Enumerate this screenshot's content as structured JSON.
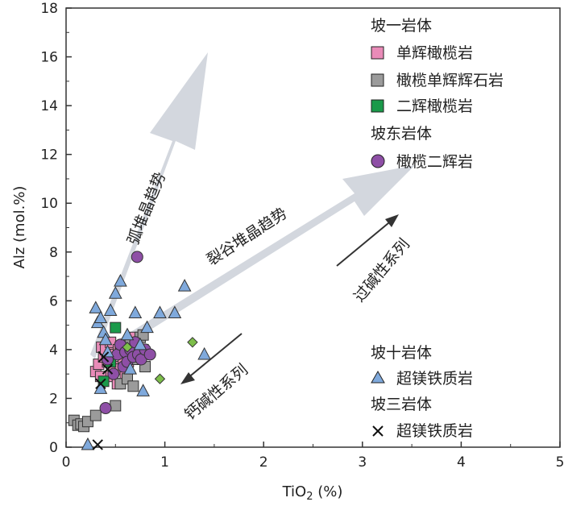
{
  "chart_data": {
    "type": "scatter",
    "xlabel": "TiO",
    "xlabel_sub": "2",
    "xlabel_unit": " (%)",
    "ylabel": "Alz (mol.%)",
    "xlim": [
      0,
      5
    ],
    "ylim": [
      0,
      18
    ],
    "xticks": [
      0,
      1,
      2,
      3,
      4,
      5
    ],
    "yticks": [
      0,
      2,
      4,
      6,
      8,
      10,
      12,
      14,
      16,
      18
    ],
    "legend": {
      "groups": [
        {
          "title": "坡一岩体",
          "entries": [
            {
              "name": "单辉橄榄岩",
              "marker": "square",
              "color": "#E98BB8"
            },
            {
              "name": "橄榄单辉辉石岩",
              "marker": "square",
              "color": "#9B9B9B"
            },
            {
              "name": "二辉橄榄岩",
              "marker": "square",
              "color": "#1A9A4A"
            }
          ]
        },
        {
          "title": "坡东岩体",
          "entries": [
            {
              "name": "橄榄二辉岩",
              "marker": "circle",
              "color": "#8E4FA6"
            }
          ]
        },
        {
          "title": "坡十岩体",
          "entries": [
            {
              "name": "超镁铁质岩",
              "marker": "triangle",
              "color": "#7FA9DC"
            }
          ]
        },
        {
          "title": "坡三岩体",
          "entries": [
            {
              "name": "超镁铁质岩",
              "marker": "cross",
              "color": "#111111"
            }
          ]
        }
      ]
    },
    "annotations": {
      "arc_trend": "弧堆晶趋势",
      "rift_trend": "裂谷堆晶趋势",
      "peralkaline": "过碱性系列",
      "calc_alkaline": "钙碱性系列"
    },
    "series": [
      {
        "name": "单辉橄榄岩",
        "marker": "square",
        "color": "#E98BB8",
        "points": [
          [
            0.3,
            3.1
          ],
          [
            0.33,
            3.4
          ],
          [
            0.36,
            4.1
          ],
          [
            0.38,
            3.7
          ],
          [
            0.4,
            4.0
          ],
          [
            0.42,
            3.5
          ],
          [
            0.44,
            2.9
          ],
          [
            0.46,
            3.9
          ],
          [
            0.48,
            3.3
          ],
          [
            0.5,
            3.8
          ],
          [
            0.52,
            2.6
          ],
          [
            0.55,
            3.2
          ],
          [
            0.58,
            3.6
          ],
          [
            0.6,
            3.0
          ],
          [
            0.63,
            3.5
          ],
          [
            0.66,
            4.3
          ],
          [
            0.7,
            4.5
          ],
          [
            0.35,
            2.9
          ],
          [
            0.45,
            4.3
          ],
          [
            0.53,
            4.0
          ]
        ]
      },
      {
        "name": "橄榄单辉辉石岩",
        "marker": "square",
        "color": "#9B9B9B",
        "points": [
          [
            0.08,
            1.1
          ],
          [
            0.12,
            0.9
          ],
          [
            0.15,
            0.95
          ],
          [
            0.18,
            0.85
          ],
          [
            0.22,
            1.05
          ],
          [
            0.3,
            1.3
          ],
          [
            0.5,
            1.7
          ],
          [
            0.55,
            2.6
          ],
          [
            0.62,
            2.8
          ],
          [
            0.68,
            2.5
          ],
          [
            0.75,
            4.5
          ],
          [
            0.78,
            4.0
          ],
          [
            0.8,
            3.3
          ],
          [
            0.72,
            3.8
          ],
          [
            0.65,
            4.2
          ],
          [
            0.7,
            3.6
          ],
          [
            0.78,
            4.6
          ]
        ]
      },
      {
        "name": "二辉橄榄岩",
        "marker": "square",
        "color": "#1A9A4A",
        "points": [
          [
            0.38,
            2.7
          ],
          [
            0.45,
            3.5
          ],
          [
            0.5,
            4.9
          ],
          [
            0.55,
            4.1
          ],
          [
            0.58,
            3.9
          ]
        ]
      },
      {
        "name": "橄榄二辉岩",
        "marker": "circle",
        "color": "#8E4FA6",
        "points": [
          [
            0.4,
            1.6
          ],
          [
            0.42,
            3.6
          ],
          [
            0.48,
            3.0
          ],
          [
            0.52,
            3.8
          ],
          [
            0.55,
            4.2
          ],
          [
            0.58,
            3.3
          ],
          [
            0.6,
            3.9
          ],
          [
            0.62,
            3.5
          ],
          [
            0.65,
            4.0
          ],
          [
            0.68,
            3.7
          ],
          [
            0.7,
            4.3
          ],
          [
            0.73,
            3.8
          ],
          [
            0.76,
            3.6
          ],
          [
            0.8,
            4.0
          ],
          [
            0.85,
            3.8
          ],
          [
            0.72,
            7.8
          ]
        ]
      },
      {
        "name": "超镁铁质岩 (坡十)",
        "marker": "triangle",
        "color": "#7FA9DC",
        "points": [
          [
            0.22,
            0.1
          ],
          [
            0.3,
            5.7
          ],
          [
            0.32,
            5.1
          ],
          [
            0.35,
            5.3
          ],
          [
            0.38,
            4.7
          ],
          [
            0.4,
            4.4
          ],
          [
            0.42,
            3.9
          ],
          [
            0.45,
            5.6
          ],
          [
            0.5,
            6.3
          ],
          [
            0.55,
            6.8
          ],
          [
            0.62,
            4.6
          ],
          [
            0.65,
            3.2
          ],
          [
            0.7,
            5.5
          ],
          [
            0.75,
            4.2
          ],
          [
            0.78,
            2.3
          ],
          [
            0.82,
            4.9
          ],
          [
            0.95,
            5.5
          ],
          [
            1.1,
            5.5
          ],
          [
            1.2,
            6.6
          ],
          [
            1.4,
            3.8
          ],
          [
            0.35,
            2.4
          ]
        ]
      },
      {
        "name": "超镁铁质岩 (坡三)",
        "marker": "cross",
        "color": "#111111",
        "points": [
          [
            0.32,
            0.1
          ],
          [
            0.35,
            2.6
          ],
          [
            0.38,
            3.7
          ],
          [
            0.42,
            3.2
          ]
        ]
      },
      {
        "name": "green diamonds",
        "marker": "diamond",
        "color": "#7DBE4A",
        "points": [
          [
            0.95,
            2.8
          ],
          [
            1.28,
            4.3
          ],
          [
            0.62,
            4.1
          ]
        ]
      }
    ]
  }
}
